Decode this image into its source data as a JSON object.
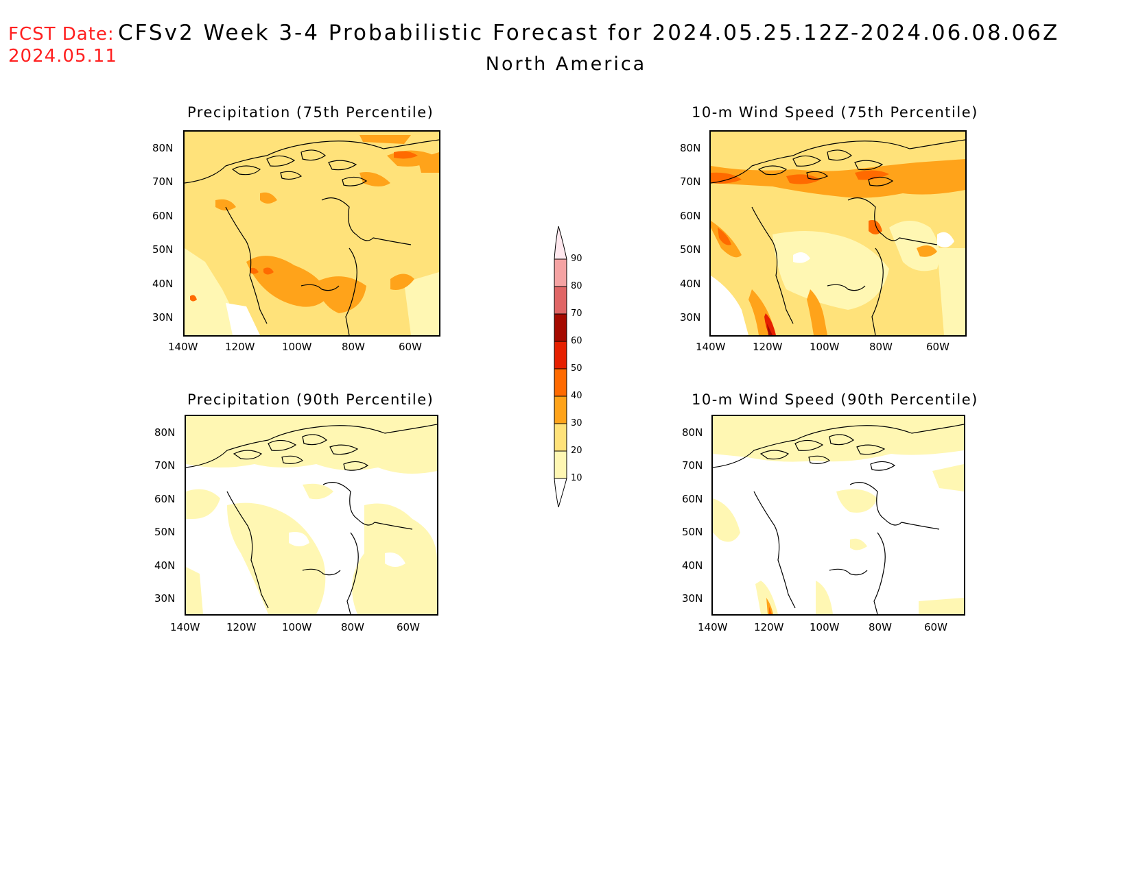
{
  "header": {
    "fcst_label": "FCST Date:",
    "fcst_date": "2024.05.11",
    "title": "CFSv2 Week 3-4 Probabilistic Forecast for 2024.05.25.12Z-2024.06.08.06Z",
    "region": "North America"
  },
  "axes": {
    "lat_ticks": [
      "80N",
      "70N",
      "60N",
      "50N",
      "40N",
      "30N"
    ],
    "lon_ticks": [
      "140W",
      "120W",
      "100W",
      "80W",
      "60W"
    ]
  },
  "panels": [
    {
      "id": "precip-75",
      "title": "Precipitation (75th Percentile)",
      "variable": "precipitation",
      "percentile": 75,
      "dominant_category": "20-30"
    },
    {
      "id": "wind-75",
      "title": "10-m Wind Speed (75th Percentile)",
      "variable": "10-m wind speed",
      "percentile": 75,
      "dominant_category": "20-30"
    },
    {
      "id": "precip-90",
      "title": "Precipitation (90th Percentile)",
      "variable": "precipitation",
      "percentile": 90,
      "dominant_category": "0-10 / 10-20"
    },
    {
      "id": "wind-90",
      "title": "10-m Wind Speed (90th Percentile)",
      "variable": "10-m wind speed",
      "percentile": 90,
      "dominant_category": "0-10"
    }
  ],
  "colorbar": {
    "labels": [
      "90",
      "80",
      "70",
      "60",
      "50",
      "40",
      "30",
      "20",
      "10"
    ],
    "levels": [
      10,
      20,
      30,
      40,
      50,
      60,
      70,
      80,
      90
    ],
    "colors": {
      "below_10": "#ffffff",
      "10_20": "#fff7b3",
      "20_30": "#ffe27a",
      "30_40": "#ffa31a",
      "40_50": "#ff6a00",
      "50_60": "#e62000",
      "60_70": "#a50a00",
      "70_80": "#e06666",
      "80_90": "#f5a3a3",
      "above_90": "#ffe8ee"
    }
  }
}
